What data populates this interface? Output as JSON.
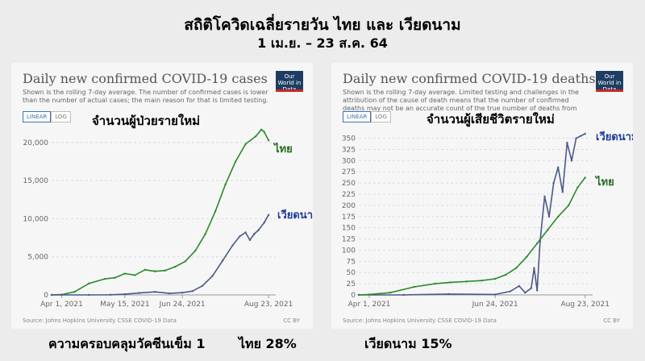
{
  "header": {
    "title": "สถิติโควิดเฉลี่ยรายวัน ไทย และ เวียดนาม",
    "subtitle": "1 เม.ย. – 23 ส.ค. 64"
  },
  "left_panel": {
    "owid_title": "Daily new confirmed COVID-19 cases",
    "owid_note": "Shown is the rolling 7-day average. The number of confirmed cases is lower than the number of actual cases; the main reason for that is limited testing.",
    "logo_text": "Our World in Data",
    "toggle_linear": "LINEAR",
    "toggle_log": "LOG",
    "overlay_label": "จำนวนผู้ป่วยรายใหม่",
    "source": "Source: Johns Hopkins University CSSE COVID-19 Data",
    "license": "CC BY"
  },
  "right_panel": {
    "owid_title": "Daily new confirmed COVID-19 deaths",
    "owid_note": "Shown is the rolling 7-day average. Limited testing and challenges in the attribution of the cause of death means that the number of confirmed deaths may not be an accurate count of the true number of deaths from COVID-19.",
    "logo_text": "Our World in Data",
    "toggle_linear": "LINEAR",
    "toggle_log": "LOG",
    "overlay_label": "จำนวนผู้เสียชีวิตรายใหม่",
    "source": "Source: Johns Hopkins University CSSE COVID-19 Data",
    "license": "CC BY"
  },
  "footer": {
    "coverage_label": "ความครอบคลุมวัคซีนเข็ม 1",
    "thailand_coverage": "ไทย 28%",
    "vietnam_coverage": "เวียดนาม 15%"
  },
  "colors": {
    "thailand": "#2b8a2b",
    "vietnam": "#4a5a8a",
    "grid": "#dddddd",
    "vietnam_label": "#1f3a9a",
    "thailand_label": "#1f6b1f"
  },
  "chart_data": [
    {
      "type": "line",
      "title": "Daily new confirmed COVID-19 cases",
      "x_ticks": [
        "Apr 1, 2021",
        "May 15, 2021",
        "Jun 24, 2021",
        "Aug 23, 2021"
      ],
      "x_range": [
        "Mar 25, 2021",
        "Aug 28, 2021"
      ],
      "y_ticks": [
        0,
        5000,
        10000,
        15000,
        20000
      ],
      "ylim": [
        0,
        22000
      ],
      "grid": true,
      "series": [
        {
          "name": "ไทย",
          "dates": [
            "Mar 25",
            "Apr 1",
            "Apr 10",
            "Apr 20",
            "May 1",
            "May 8",
            "May 15",
            "May 22",
            "May 29",
            "Jun 5",
            "Jun 12",
            "Jun 19",
            "Jun 26",
            "Jul 3",
            "Jul 10",
            "Jul 17",
            "Jul 24",
            "Jul 31",
            "Aug 7",
            "Aug 14",
            "Aug 18",
            "Aug 20",
            "Aug 23"
          ],
          "values": [
            10,
            40,
            400,
            1500,
            2100,
            2250,
            2800,
            2600,
            3300,
            3100,
            3200,
            3700,
            4400,
            5800,
            8000,
            11000,
            14500,
            17500,
            19800,
            20800,
            21700,
            21400,
            20300
          ]
        },
        {
          "name": "เวียดนาม",
          "dates": [
            "Mar 25",
            "Apr 1",
            "Apr 20",
            "May 5",
            "May 15",
            "May 25",
            "Jun 5",
            "Jun 15",
            "Jun 24",
            "Jul 1",
            "Jul 8",
            "Jul 15",
            "Jul 22",
            "Jul 29",
            "Aug 3",
            "Aug 7",
            "Aug 10",
            "Aug 13",
            "Aug 16",
            "Aug 20",
            "Aug 23"
          ],
          "values": [
            0,
            0,
            5,
            20,
            100,
            250,
            400,
            200,
            300,
            500,
            1200,
            2500,
            4500,
            6500,
            7700,
            8200,
            7200,
            8000,
            8500,
            9500,
            10500
          ]
        }
      ]
    },
    {
      "type": "line",
      "title": "Daily new confirmed COVID-19 deaths",
      "x_ticks": [
        "Apr 1, 2021",
        "Jun 24, 2021",
        "Aug 23, 2021"
      ],
      "x_range": [
        "Mar 25, 2021",
        "Aug 28, 2021"
      ],
      "y_ticks": [
        0,
        25,
        50,
        75,
        100,
        125,
        150,
        175,
        200,
        225,
        250,
        275,
        300,
        325,
        350
      ],
      "ylim": [
        0,
        360
      ],
      "grid": true,
      "series": [
        {
          "name": "เวียดนาม",
          "dates": [
            "Mar 25",
            "Apr 24",
            "May 24",
            "Jun 24",
            "Jul 4",
            "Jul 10",
            "Jul 14",
            "Jul 18",
            "Jul 20",
            "Jul 22",
            "Jul 24",
            "Jul 27",
            "Jul 30",
            "Aug 2",
            "Aug 5",
            "Aug 8",
            "Aug 11",
            "Aug 14",
            "Aug 17",
            "Aug 20",
            "Aug 23"
          ],
          "values": [
            0,
            0,
            2,
            1,
            8,
            20,
            5,
            15,
            60,
            10,
            120,
            220,
            175,
            250,
            285,
            230,
            340,
            300,
            350,
            355,
            360
          ]
        },
        {
          "name": "ไทย",
          "dates": [
            "Mar 25",
            "Apr 1",
            "Apr 15",
            "May 1",
            "May 15",
            "May 25",
            "Jun 5",
            "Jun 15",
            "Jun 24",
            "Jul 1",
            "Jul 8",
            "Jul 15",
            "Jul 22",
            "Jul 29",
            "Aug 5",
            "Aug 12",
            "Aug 18",
            "Aug 23"
          ],
          "values": [
            0,
            1,
            5,
            18,
            25,
            28,
            30,
            32,
            36,
            45,
            60,
            85,
            115,
            145,
            175,
            200,
            240,
            262
          ]
        }
      ]
    }
  ]
}
